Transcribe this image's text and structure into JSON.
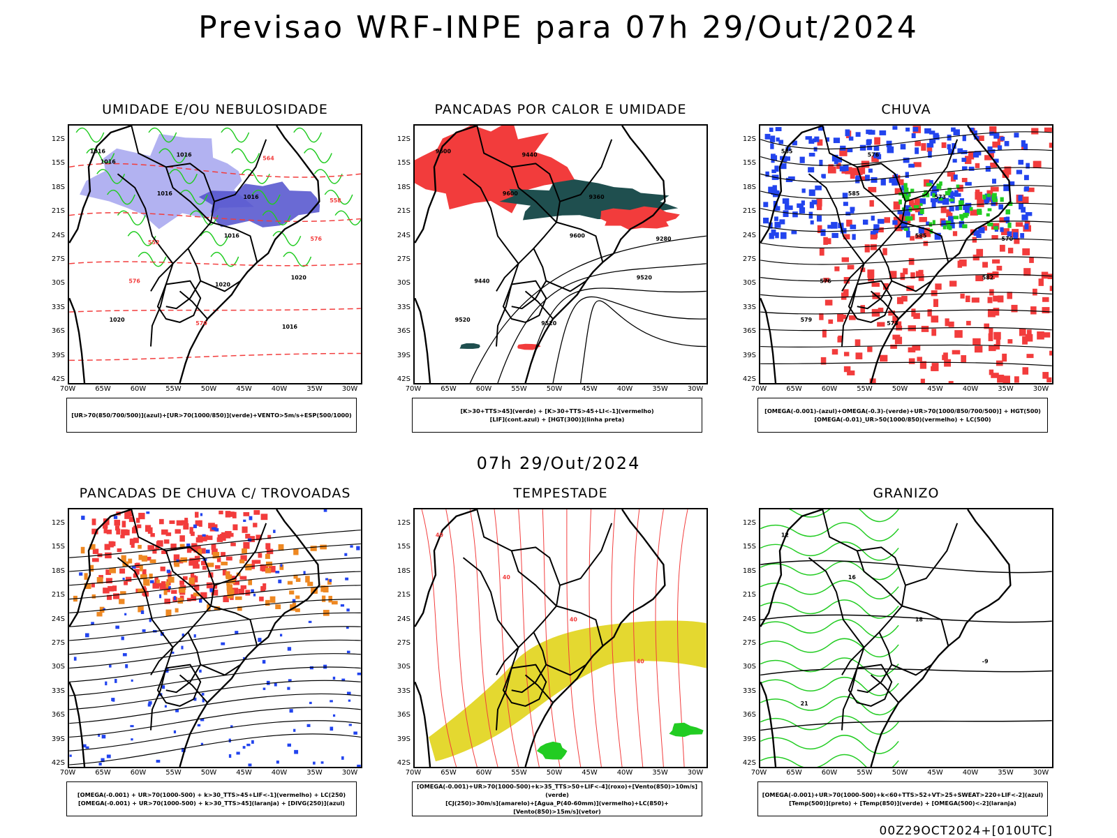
{
  "header": {
    "title": "Previsao WRF-INPE  para 07h 29/Out/2024"
  },
  "subheader": {
    "time_label": "07h 29/Out/2024"
  },
  "footer": {
    "run_label": "00Z29OCT2024+[010UTC]"
  },
  "axes": {
    "lat_labels": [
      "12S",
      "15S",
      "18S",
      "21S",
      "24S",
      "27S",
      "30S",
      "33S",
      "36S",
      "39S",
      "42S"
    ],
    "lon_labels": [
      "70W",
      "65W",
      "60W",
      "55W",
      "50W",
      "45W",
      "40W",
      "35W",
      "30W"
    ]
  },
  "colors": {
    "red": "#f23c3c",
    "green": "#22cc22",
    "blue": "#2244ee",
    "lightblue": "#aaaaf0",
    "darkteal": "#1f4f4f",
    "orange": "#ee8822",
    "yellow": "#e4d830",
    "purple": "#5050cc"
  },
  "panels": [
    {
      "title": "UMIDADE E/OU NEBULOSIDADE",
      "legend": [
        "[UR>70(850/700/500)](azul)+[UR>70(1000/850)](verde)+VENTO>5m/s+ESP(500/1000)"
      ],
      "contour_labels": [
        "1016",
        "1016",
        "1016",
        "1020",
        "1020",
        "1016",
        "1016",
        "576",
        "576",
        "570",
        "564",
        "558",
        "552",
        "1020",
        "1016",
        "1016"
      ]
    },
    {
      "title": "PANCADAS POR CALOR E UMIDADE",
      "legend": [
        "[K>30+TTS>45](verde) + [K>30+TTS>45+LI<-1](vermelho)",
        "[LIF](cont.azul) + [HGT(300)](linha preta)"
      ],
      "contour_labels": [
        "9600",
        "9600",
        "9600",
        "9520",
        "9520",
        "9440",
        "9360",
        "9280",
        "9440",
        "9520"
      ]
    },
    {
      "title": "CHUVA",
      "legend": [
        "[OMEGA(-0.001)-(azul)+OMEGA(-0.3)-(verde)+UR>70(1000/850/700/500)] + HGT(500)",
        "[OMEGA(-0.01)_UR>50(1000/850)(vermelho) + LC(500)"
      ],
      "contour_labels": [
        "585",
        "585",
        "585",
        "582",
        "579",
        "576",
        "573",
        "570",
        "576",
        "573"
      ]
    },
    {
      "title": "PANCADAS DE CHUVA C/ TROVOADAS",
      "legend": [
        "[OMEGA(-0.001) + UR>70(1000-500) + k>30_TTS>45+LIF<-1](vermelho) + LC(250)",
        "[OMEGA(-0.001) + UR>70(1000-500) + k>30_TTS>45](laranja) + [DIVG(250)](azul)"
      ],
      "contour_labels": []
    },
    {
      "title": "TEMPESTADE",
      "legend": [
        "[OMEGA(-0.001)+UR>70(1000-500)+k>35_TTS>50+LIF<-4](roxo)+[Vento(850)>10m/s](verde)",
        "[CJ(250)>30m/s](amarelo)+[Agua_P(40-60mm)](vermelho)+LC(850)+[Vento(850)>15m/s](vetor)"
      ],
      "contour_labels": [
        "40",
        "40",
        "40",
        "40"
      ]
    },
    {
      "title": "GRANIZO",
      "legend": [
        "[OMEGA(-0.001)+UR>70(1000-500)+k<60+TTS>52+VT>25+SWEAT>220+LIF<-2](azul)",
        "[Temp(500)](preto) + [Temp(850)](verde) + [OMEGA(500)<-2](laranja)"
      ],
      "contour_labels": [
        "12",
        "16",
        "18",
        "-9",
        "21"
      ]
    }
  ]
}
